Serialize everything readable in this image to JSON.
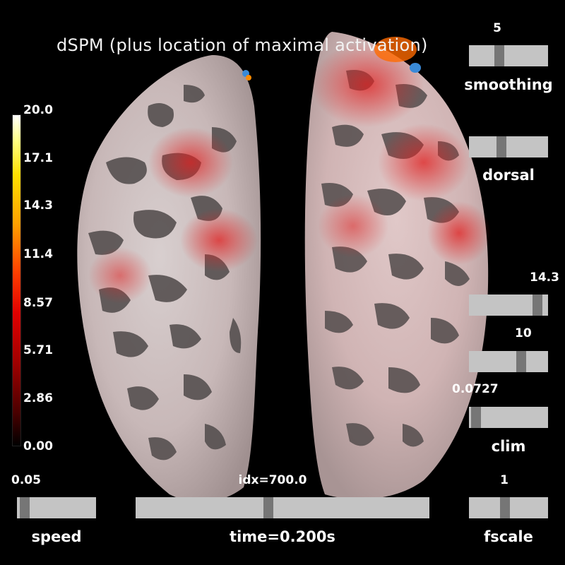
{
  "title": "dSPM (plus location of maximal activation)",
  "colorbar": {
    "ticks": [
      "20.0",
      "17.1",
      "14.3",
      "11.4",
      "8.57",
      "5.71",
      "2.86",
      "0.00"
    ],
    "colormap": "hot"
  },
  "sliders": {
    "smoothing": {
      "label": "smoothing",
      "value": "5",
      "level": 0.37
    },
    "view": {
      "label": "dorsal",
      "level": 0.4
    },
    "clim_high": {
      "value": "14.3",
      "level": 0.92
    },
    "clim_mid": {
      "value": "10",
      "level": 0.68
    },
    "clim_low": {
      "label": "clim",
      "value": "0.0727",
      "level": 0.03
    },
    "fscale": {
      "label": "fscale",
      "value": "1",
      "level": 0.45
    },
    "speed": {
      "label": "speed",
      "value": "0.05",
      "level": 0.04
    },
    "time": {
      "label": "time=0.200s",
      "value": "idx=700.0",
      "level": 0.45
    }
  },
  "colors": {
    "background": "#000000",
    "slider_track": "#c4c4c4",
    "slider_handle": "#767676"
  }
}
